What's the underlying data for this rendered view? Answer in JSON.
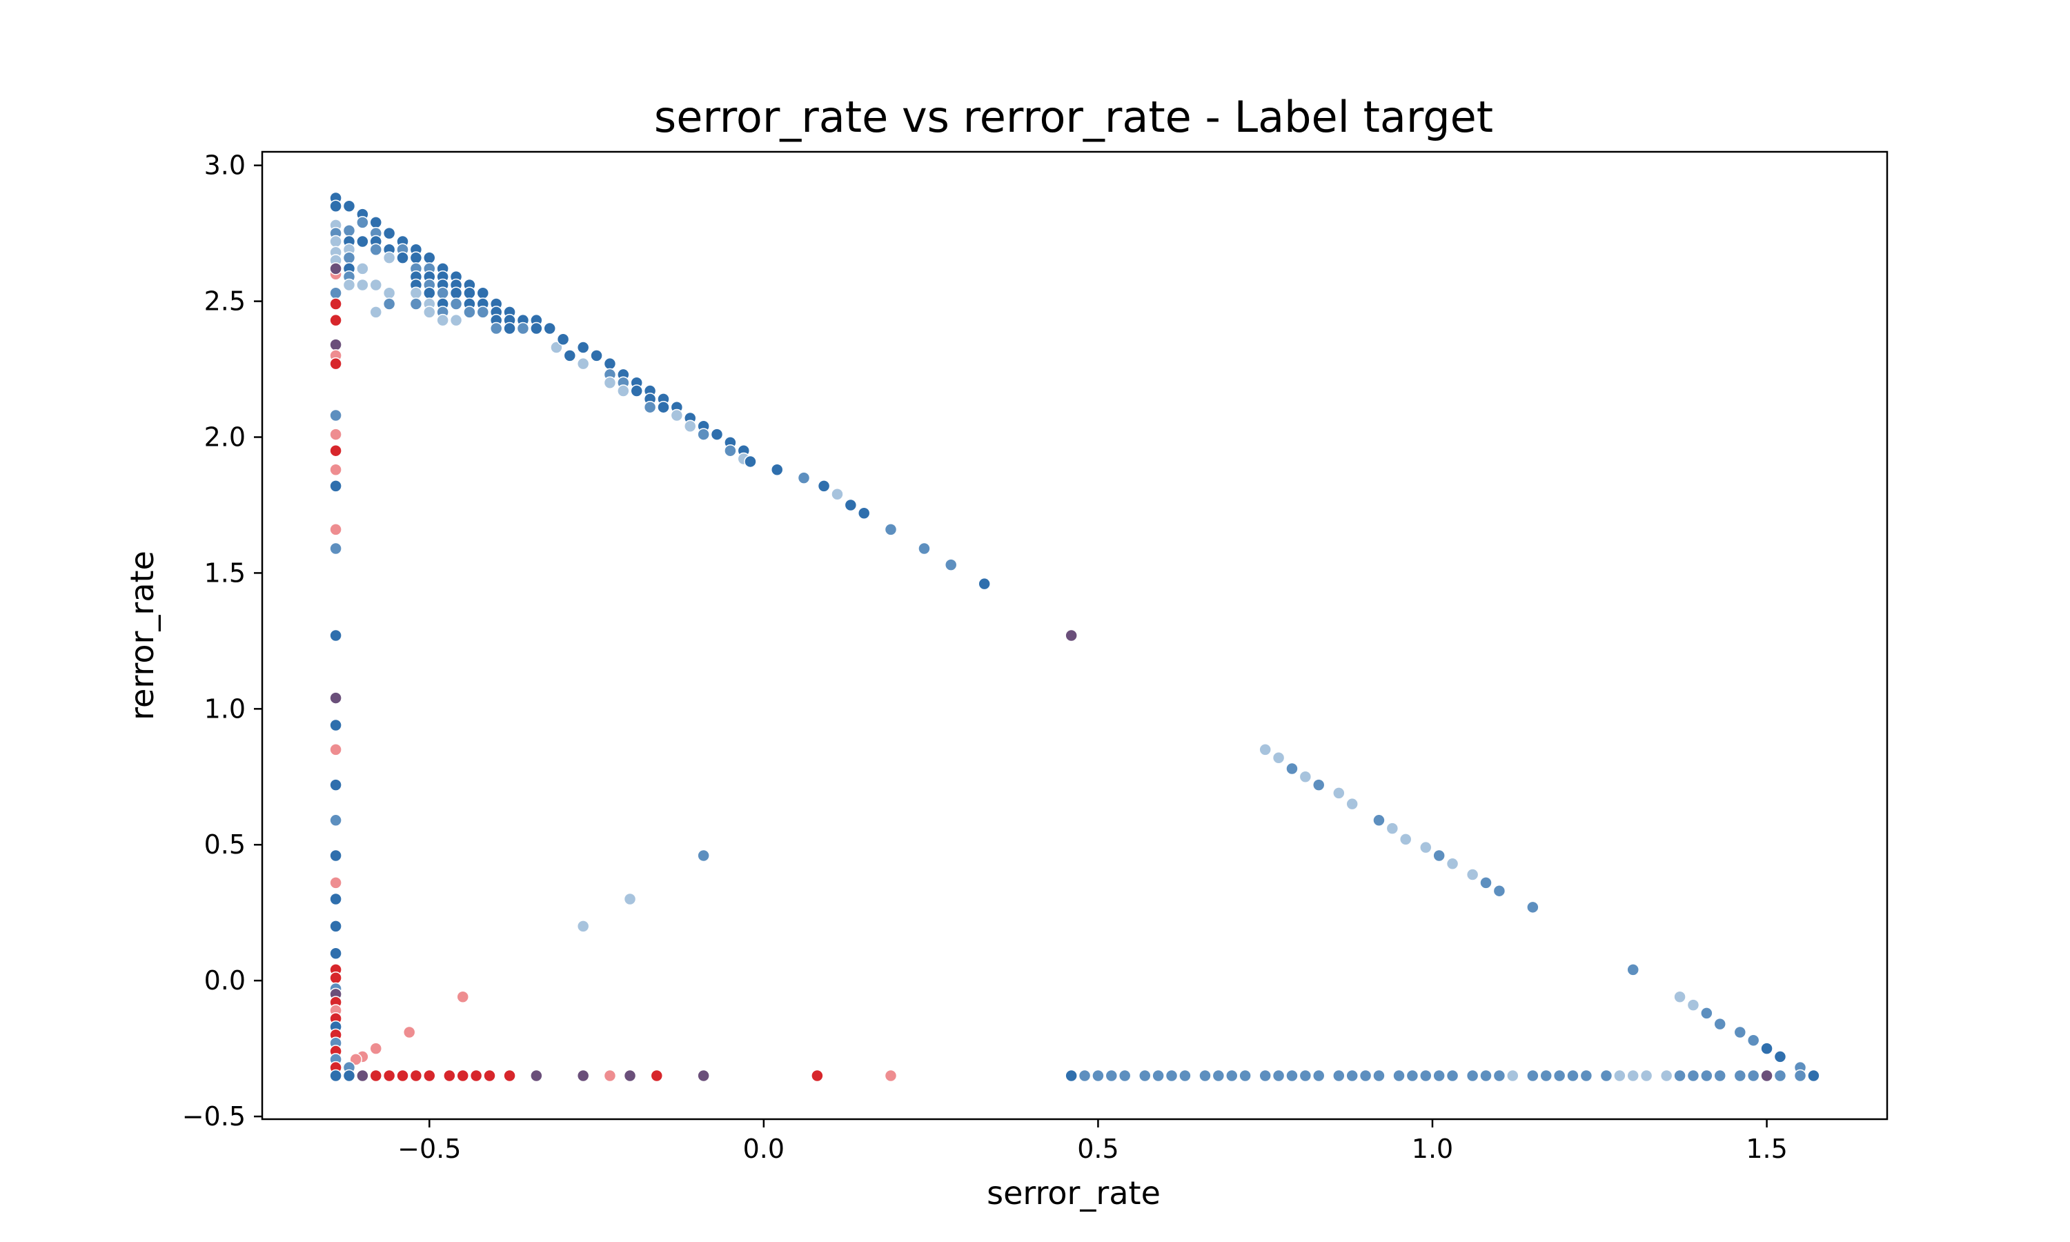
{
  "chart_data": {
    "type": "scatter",
    "title": "serror_rate vs rerror_rate - Label target",
    "xlabel": "serror_rate",
    "ylabel": "rerror_rate",
    "xlim": [
      -0.75,
      1.68
    ],
    "ylim": [
      -0.51,
      3.05
    ],
    "xticks": [
      -0.5,
      0.0,
      0.5,
      1.0,
      1.5
    ],
    "xtick_labels": [
      "−0.5",
      "0.0",
      "0.5",
      "1.0",
      "1.5"
    ],
    "yticks": [
      -0.5,
      0.0,
      0.5,
      1.0,
      1.5,
      2.0,
      2.5,
      3.0
    ],
    "ytick_labels": [
      "−0.5",
      "0.0",
      "0.5",
      "1.0",
      "1.5",
      "2.0",
      "2.5",
      "3.0"
    ],
    "grid": false,
    "legend": "none",
    "colors": {
      "blue_dark": "#2f6fad",
      "blue_mid": "#5d8fbf",
      "blue_light": "#a7c3dd",
      "red_dark": "#d7262b",
      "red_light": "#ee8d90",
      "purple": "#6a4f7a"
    },
    "points": [
      [
        -0.64,
        2.88,
        "blue_dark"
      ],
      [
        -0.64,
        2.85,
        "blue_dark"
      ],
      [
        -0.64,
        2.78,
        "blue_light"
      ],
      [
        -0.64,
        2.75,
        "blue_mid"
      ],
      [
        -0.64,
        2.72,
        "blue_light"
      ],
      [
        -0.64,
        2.68,
        "blue_light"
      ],
      [
        -0.64,
        2.65,
        "blue_light"
      ],
      [
        -0.64,
        2.6,
        "red_light"
      ],
      [
        -0.64,
        2.62,
        "purple"
      ],
      [
        -0.64,
        2.53,
        "blue_mid"
      ],
      [
        -0.64,
        2.49,
        "red_dark"
      ],
      [
        -0.64,
        2.43,
        "red_dark"
      ],
      [
        -0.64,
        2.34,
        "purple"
      ],
      [
        -0.64,
        2.3,
        "red_light"
      ],
      [
        -0.64,
        2.27,
        "red_dark"
      ],
      [
        -0.64,
        2.08,
        "blue_mid"
      ],
      [
        -0.64,
        2.01,
        "red_light"
      ],
      [
        -0.64,
        1.95,
        "red_dark"
      ],
      [
        -0.64,
        1.88,
        "red_light"
      ],
      [
        -0.64,
        1.82,
        "blue_dark"
      ],
      [
        -0.64,
        1.66,
        "red_light"
      ],
      [
        -0.64,
        1.59,
        "blue_mid"
      ],
      [
        -0.64,
        1.27,
        "blue_dark"
      ],
      [
        -0.64,
        1.04,
        "purple"
      ],
      [
        -0.64,
        0.94,
        "blue_dark"
      ],
      [
        -0.64,
        0.85,
        "red_light"
      ],
      [
        -0.64,
        0.72,
        "blue_dark"
      ],
      [
        -0.64,
        0.59,
        "blue_mid"
      ],
      [
        -0.64,
        0.46,
        "blue_dark"
      ],
      [
        -0.64,
        0.36,
        "red_light"
      ],
      [
        -0.64,
        0.3,
        "blue_dark"
      ],
      [
        -0.64,
        0.2,
        "blue_dark"
      ],
      [
        -0.64,
        0.1,
        "blue_dark"
      ],
      [
        -0.64,
        0.04,
        "red_dark"
      ],
      [
        -0.64,
        0.01,
        "red_dark"
      ],
      [
        -0.64,
        -0.03,
        "blue_mid"
      ],
      [
        -0.64,
        -0.05,
        "purple"
      ],
      [
        -0.64,
        -0.08,
        "red_dark"
      ],
      [
        -0.64,
        -0.11,
        "red_light"
      ],
      [
        -0.64,
        -0.14,
        "red_dark"
      ],
      [
        -0.64,
        -0.17,
        "blue_dark"
      ],
      [
        -0.64,
        -0.2,
        "red_dark"
      ],
      [
        -0.64,
        -0.23,
        "blue_mid"
      ],
      [
        -0.64,
        -0.26,
        "red_dark"
      ],
      [
        -0.64,
        -0.29,
        "blue_mid"
      ],
      [
        -0.64,
        -0.32,
        "red_dark"
      ],
      [
        -0.64,
        -0.35,
        "blue_dark"
      ],
      [
        -0.62,
        2.85,
        "blue_dark"
      ],
      [
        -0.62,
        2.76,
        "blue_mid"
      ],
      [
        -0.62,
        2.72,
        "blue_dark"
      ],
      [
        -0.62,
        2.69,
        "blue_light"
      ],
      [
        -0.62,
        2.66,
        "blue_mid"
      ],
      [
        -0.62,
        2.62,
        "blue_dark"
      ],
      [
        -0.62,
        2.59,
        "blue_mid"
      ],
      [
        -0.62,
        2.56,
        "blue_light"
      ],
      [
        -0.6,
        2.82,
        "blue_dark"
      ],
      [
        -0.6,
        2.79,
        "blue_mid"
      ],
      [
        -0.6,
        2.72,
        "blue_dark"
      ],
      [
        -0.6,
        2.62,
        "blue_light"
      ],
      [
        -0.6,
        2.56,
        "blue_light"
      ],
      [
        -0.58,
        2.79,
        "blue_dark"
      ],
      [
        -0.58,
        2.75,
        "blue_mid"
      ],
      [
        -0.58,
        2.72,
        "blue_dark"
      ],
      [
        -0.58,
        2.69,
        "blue_mid"
      ],
      [
        -0.58,
        2.56,
        "blue_light"
      ],
      [
        -0.58,
        2.46,
        "blue_light"
      ],
      [
        -0.56,
        2.75,
        "blue_dark"
      ],
      [
        -0.56,
        2.69,
        "blue_dark"
      ],
      [
        -0.56,
        2.66,
        "blue_light"
      ],
      [
        -0.56,
        2.53,
        "blue_light"
      ],
      [
        -0.56,
        2.49,
        "blue_mid"
      ],
      [
        -0.54,
        2.72,
        "blue_dark"
      ],
      [
        -0.54,
        2.69,
        "blue_mid"
      ],
      [
        -0.54,
        2.66,
        "blue_dark"
      ],
      [
        -0.52,
        2.69,
        "blue_dark"
      ],
      [
        -0.52,
        2.66,
        "blue_dark"
      ],
      [
        -0.52,
        2.62,
        "blue_mid"
      ],
      [
        -0.52,
        2.59,
        "blue_dark"
      ],
      [
        -0.52,
        2.56,
        "blue_dark"
      ],
      [
        -0.52,
        2.53,
        "blue_light"
      ],
      [
        -0.52,
        2.49,
        "blue_mid"
      ],
      [
        -0.5,
        2.66,
        "blue_dark"
      ],
      [
        -0.5,
        2.62,
        "blue_mid"
      ],
      [
        -0.5,
        2.59,
        "blue_dark"
      ],
      [
        -0.5,
        2.56,
        "blue_mid"
      ],
      [
        -0.5,
        2.53,
        "blue_dark"
      ],
      [
        -0.5,
        2.49,
        "blue_light"
      ],
      [
        -0.5,
        2.46,
        "blue_light"
      ],
      [
        -0.48,
        2.62,
        "blue_dark"
      ],
      [
        -0.48,
        2.59,
        "blue_dark"
      ],
      [
        -0.48,
        2.56,
        "blue_dark"
      ],
      [
        -0.48,
        2.53,
        "blue_mid"
      ],
      [
        -0.48,
        2.49,
        "blue_dark"
      ],
      [
        -0.48,
        2.46,
        "blue_mid"
      ],
      [
        -0.48,
        2.43,
        "blue_light"
      ],
      [
        -0.46,
        2.59,
        "blue_dark"
      ],
      [
        -0.46,
        2.56,
        "blue_dark"
      ],
      [
        -0.46,
        2.53,
        "blue_dark"
      ],
      [
        -0.46,
        2.49,
        "blue_mid"
      ],
      [
        -0.46,
        2.43,
        "blue_light"
      ],
      [
        -0.44,
        2.56,
        "blue_dark"
      ],
      [
        -0.44,
        2.53,
        "blue_dark"
      ],
      [
        -0.44,
        2.49,
        "blue_dark"
      ],
      [
        -0.44,
        2.46,
        "blue_mid"
      ],
      [
        -0.42,
        2.53,
        "blue_dark"
      ],
      [
        -0.42,
        2.49,
        "blue_dark"
      ],
      [
        -0.42,
        2.46,
        "blue_mid"
      ],
      [
        -0.4,
        2.49,
        "blue_dark"
      ],
      [
        -0.4,
        2.46,
        "blue_dark"
      ],
      [
        -0.4,
        2.43,
        "blue_dark"
      ],
      [
        -0.4,
        2.4,
        "blue_mid"
      ],
      [
        -0.38,
        2.46,
        "blue_dark"
      ],
      [
        -0.38,
        2.43,
        "blue_dark"
      ],
      [
        -0.38,
        2.4,
        "blue_dark"
      ],
      [
        -0.36,
        2.43,
        "blue_dark"
      ],
      [
        -0.36,
        2.4,
        "blue_mid"
      ],
      [
        -0.34,
        2.43,
        "blue_dark"
      ],
      [
        -0.34,
        2.4,
        "blue_dark"
      ],
      [
        -0.32,
        2.4,
        "blue_dark"
      ],
      [
        -0.31,
        2.33,
        "blue_light"
      ],
      [
        -0.3,
        2.36,
        "blue_dark"
      ],
      [
        -0.29,
        2.3,
        "blue_dark"
      ],
      [
        -0.27,
        2.33,
        "blue_dark"
      ],
      [
        -0.27,
        2.27,
        "blue_light"
      ],
      [
        -0.25,
        2.3,
        "blue_dark"
      ],
      [
        -0.23,
        2.27,
        "blue_dark"
      ],
      [
        -0.23,
        2.23,
        "blue_mid"
      ],
      [
        -0.23,
        2.2,
        "blue_light"
      ],
      [
        -0.21,
        2.23,
        "blue_dark"
      ],
      [
        -0.21,
        2.2,
        "blue_mid"
      ],
      [
        -0.21,
        2.17,
        "blue_light"
      ],
      [
        -0.19,
        2.2,
        "blue_dark"
      ],
      [
        -0.19,
        2.17,
        "blue_dark"
      ],
      [
        -0.17,
        2.17,
        "blue_dark"
      ],
      [
        -0.17,
        2.14,
        "blue_dark"
      ],
      [
        -0.17,
        2.11,
        "blue_mid"
      ],
      [
        -0.15,
        2.14,
        "blue_dark"
      ],
      [
        -0.15,
        2.11,
        "blue_dark"
      ],
      [
        -0.13,
        2.11,
        "blue_dark"
      ],
      [
        -0.13,
        2.08,
        "blue_light"
      ],
      [
        -0.11,
        2.07,
        "blue_dark"
      ],
      [
        -0.11,
        2.04,
        "blue_light"
      ],
      [
        -0.09,
        2.04,
        "blue_dark"
      ],
      [
        -0.09,
        2.01,
        "blue_mid"
      ],
      [
        -0.07,
        2.01,
        "blue_dark"
      ],
      [
        -0.05,
        1.98,
        "blue_dark"
      ],
      [
        -0.05,
        1.95,
        "blue_mid"
      ],
      [
        -0.03,
        1.95,
        "blue_dark"
      ],
      [
        -0.03,
        1.92,
        "blue_light"
      ],
      [
        -0.02,
        1.91,
        "blue_dark"
      ],
      [
        0.02,
        1.88,
        "blue_dark"
      ],
      [
        0.06,
        1.85,
        "blue_mid"
      ],
      [
        0.09,
        1.82,
        "blue_dark"
      ],
      [
        0.11,
        1.79,
        "blue_light"
      ],
      [
        0.13,
        1.75,
        "blue_dark"
      ],
      [
        0.15,
        1.72,
        "blue_dark"
      ],
      [
        0.19,
        1.66,
        "blue_mid"
      ],
      [
        0.24,
        1.59,
        "blue_mid"
      ],
      [
        0.28,
        1.53,
        "blue_mid"
      ],
      [
        0.33,
        1.46,
        "blue_dark"
      ],
      [
        0.46,
        1.27,
        "purple"
      ],
      [
        0.75,
        0.85,
        "blue_light"
      ],
      [
        0.77,
        0.82,
        "blue_light"
      ],
      [
        0.79,
        0.78,
        "blue_mid"
      ],
      [
        0.81,
        0.75,
        "blue_light"
      ],
      [
        0.83,
        0.72,
        "blue_mid"
      ],
      [
        0.86,
        0.69,
        "blue_light"
      ],
      [
        0.88,
        0.65,
        "blue_light"
      ],
      [
        0.92,
        0.59,
        "blue_mid"
      ],
      [
        0.94,
        0.56,
        "blue_light"
      ],
      [
        0.96,
        0.52,
        "blue_light"
      ],
      [
        0.99,
        0.49,
        "blue_light"
      ],
      [
        1.01,
        0.46,
        "blue_mid"
      ],
      [
        1.03,
        0.43,
        "blue_light"
      ],
      [
        1.06,
        0.39,
        "blue_light"
      ],
      [
        1.08,
        0.36,
        "blue_mid"
      ],
      [
        1.1,
        0.33,
        "blue_mid"
      ],
      [
        1.15,
        0.27,
        "blue_mid"
      ],
      [
        1.3,
        0.04,
        "blue_mid"
      ],
      [
        1.37,
        -0.06,
        "blue_light"
      ],
      [
        1.39,
        -0.09,
        "blue_light"
      ],
      [
        1.41,
        -0.12,
        "blue_mid"
      ],
      [
        1.43,
        -0.16,
        "blue_mid"
      ],
      [
        1.46,
        -0.19,
        "blue_mid"
      ],
      [
        1.48,
        -0.22,
        "blue_mid"
      ],
      [
        1.5,
        -0.25,
        "blue_dark"
      ],
      [
        1.52,
        -0.28,
        "blue_dark"
      ],
      [
        1.55,
        -0.32,
        "blue_mid"
      ],
      [
        1.57,
        -0.35,
        "blue_dark"
      ],
      [
        -0.09,
        0.46,
        "blue_mid"
      ],
      [
        -0.2,
        0.3,
        "blue_light"
      ],
      [
        -0.27,
        0.2,
        "blue_light"
      ],
      [
        -0.45,
        -0.06,
        "red_light"
      ],
      [
        -0.53,
        -0.19,
        "red_light"
      ],
      [
        -0.58,
        -0.25,
        "red_light"
      ],
      [
        -0.6,
        -0.28,
        "red_light"
      ],
      [
        -0.61,
        -0.29,
        "red_light"
      ],
      [
        -0.62,
        -0.32,
        "blue_mid"
      ],
      [
        -0.62,
        -0.35,
        "blue_dark"
      ],
      [
        -0.6,
        -0.35,
        "purple"
      ],
      [
        -0.58,
        -0.35,
        "red_dark"
      ],
      [
        -0.56,
        -0.35,
        "red_dark"
      ],
      [
        -0.54,
        -0.35,
        "red_dark"
      ],
      [
        -0.52,
        -0.35,
        "red_dark"
      ],
      [
        -0.5,
        -0.35,
        "red_dark"
      ],
      [
        -0.47,
        -0.35,
        "red_dark"
      ],
      [
        -0.45,
        -0.35,
        "red_dark"
      ],
      [
        -0.43,
        -0.35,
        "red_dark"
      ],
      [
        -0.41,
        -0.35,
        "red_dark"
      ],
      [
        -0.38,
        -0.35,
        "red_dark"
      ],
      [
        -0.34,
        -0.35,
        "purple"
      ],
      [
        -0.27,
        -0.35,
        "purple"
      ],
      [
        -0.23,
        -0.35,
        "red_light"
      ],
      [
        -0.2,
        -0.35,
        "purple"
      ],
      [
        -0.16,
        -0.35,
        "red_dark"
      ],
      [
        -0.09,
        -0.35,
        "purple"
      ],
      [
        0.08,
        -0.35,
        "red_dark"
      ],
      [
        0.19,
        -0.35,
        "red_light"
      ],
      [
        0.46,
        -0.35,
        "blue_dark"
      ],
      [
        0.48,
        -0.35,
        "blue_mid"
      ],
      [
        0.5,
        -0.35,
        "blue_mid"
      ],
      [
        0.52,
        -0.35,
        "blue_mid"
      ],
      [
        0.54,
        -0.35,
        "blue_mid"
      ],
      [
        0.57,
        -0.35,
        "blue_mid"
      ],
      [
        0.59,
        -0.35,
        "blue_mid"
      ],
      [
        0.61,
        -0.35,
        "blue_mid"
      ],
      [
        0.63,
        -0.35,
        "blue_mid"
      ],
      [
        0.66,
        -0.35,
        "blue_mid"
      ],
      [
        0.68,
        -0.35,
        "blue_mid"
      ],
      [
        0.7,
        -0.35,
        "blue_mid"
      ],
      [
        0.72,
        -0.35,
        "blue_mid"
      ],
      [
        0.75,
        -0.35,
        "blue_mid"
      ],
      [
        0.77,
        -0.35,
        "blue_mid"
      ],
      [
        0.79,
        -0.35,
        "blue_mid"
      ],
      [
        0.81,
        -0.35,
        "blue_mid"
      ],
      [
        0.83,
        -0.35,
        "blue_mid"
      ],
      [
        0.86,
        -0.35,
        "blue_mid"
      ],
      [
        0.88,
        -0.35,
        "blue_mid"
      ],
      [
        0.9,
        -0.35,
        "blue_mid"
      ],
      [
        0.92,
        -0.35,
        "blue_mid"
      ],
      [
        0.95,
        -0.35,
        "blue_mid"
      ],
      [
        0.97,
        -0.35,
        "blue_mid"
      ],
      [
        0.99,
        -0.35,
        "blue_mid"
      ],
      [
        1.01,
        -0.35,
        "blue_mid"
      ],
      [
        1.03,
        -0.35,
        "blue_mid"
      ],
      [
        1.06,
        -0.35,
        "blue_mid"
      ],
      [
        1.08,
        -0.35,
        "blue_mid"
      ],
      [
        1.1,
        -0.35,
        "blue_mid"
      ],
      [
        1.12,
        -0.35,
        "blue_light"
      ],
      [
        1.15,
        -0.35,
        "blue_mid"
      ],
      [
        1.17,
        -0.35,
        "blue_mid"
      ],
      [
        1.19,
        -0.35,
        "blue_mid"
      ],
      [
        1.21,
        -0.35,
        "blue_mid"
      ],
      [
        1.23,
        -0.35,
        "blue_mid"
      ],
      [
        1.26,
        -0.35,
        "blue_mid"
      ],
      [
        1.28,
        -0.35,
        "blue_light"
      ],
      [
        1.3,
        -0.35,
        "blue_light"
      ],
      [
        1.32,
        -0.35,
        "blue_light"
      ],
      [
        1.35,
        -0.35,
        "blue_light"
      ],
      [
        1.37,
        -0.35,
        "blue_mid"
      ],
      [
        1.39,
        -0.35,
        "blue_mid"
      ],
      [
        1.41,
        -0.35,
        "blue_mid"
      ],
      [
        1.43,
        -0.35,
        "blue_mid"
      ],
      [
        1.46,
        -0.35,
        "blue_mid"
      ],
      [
        1.48,
        -0.35,
        "blue_mid"
      ],
      [
        1.5,
        -0.35,
        "purple"
      ],
      [
        1.52,
        -0.35,
        "blue_mid"
      ],
      [
        1.55,
        -0.35,
        "blue_mid"
      ]
    ]
  }
}
